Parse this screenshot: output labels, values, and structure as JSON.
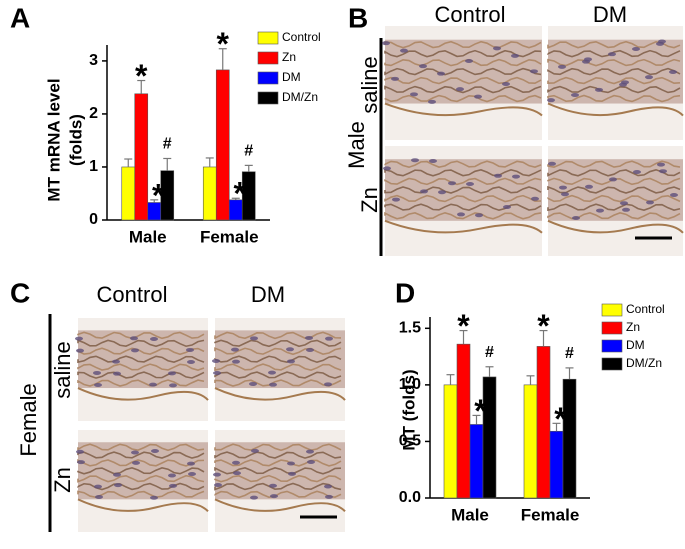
{
  "chart_data": [
    {
      "type": "bar",
      "panel": "A",
      "ylabel": [
        "MT mRNA level",
        "(folds)"
      ],
      "categories": [
        "Male",
        "Female"
      ],
      "ylim": [
        0,
        3.3
      ],
      "yticks": [
        0,
        1,
        2,
        3
      ],
      "series": [
        {
          "name": "Control",
          "color": "#ffff00",
          "values": [
            1.0,
            1.0
          ],
          "errors": [
            0.15,
            0.17
          ]
        },
        {
          "name": "Zn",
          "color": "#ff0000",
          "values": [
            2.38,
            2.83
          ],
          "errors": [
            0.25,
            0.4
          ]
        },
        {
          "name": "DM",
          "color": "#0000ff",
          "values": [
            0.33,
            0.38
          ],
          "errors": [
            0.05,
            0.03
          ]
        },
        {
          "name": "DM/Zn",
          "color": "#000000",
          "values": [
            0.93,
            0.91
          ],
          "errors": [
            0.23,
            0.12
          ]
        }
      ],
      "annotations": [
        {
          "text": "*",
          "series": 1,
          "category": 0
        },
        {
          "text": "*",
          "series": 2,
          "category": 0
        },
        {
          "text": "#",
          "series": 3,
          "category": 0
        },
        {
          "text": "*",
          "series": 1,
          "category": 1
        },
        {
          "text": "*",
          "series": 2,
          "category": 1
        },
        {
          "text": "#",
          "series": 3,
          "category": 1
        }
      ]
    },
    {
      "type": "bar",
      "panel": "D",
      "ylabel": "MT (folds)",
      "categories": [
        "Male",
        "Female"
      ],
      "ylim": [
        0,
        1.6
      ],
      "yticks": [
        {
          "value": 0,
          "label": "0.0"
        },
        {
          "value": 0.5,
          "label": "0.5"
        },
        {
          "value": 1,
          "label": "1.0"
        },
        {
          "value": 1.5,
          "label": "1.5"
        }
      ],
      "series": [
        {
          "name": "Control",
          "color": "#ffff00",
          "values": [
            1.0,
            1.0
          ],
          "errors": [
            0.09,
            0.08
          ]
        },
        {
          "name": "Zn",
          "color": "#ff0000",
          "values": [
            1.36,
            1.34
          ],
          "errors": [
            0.12,
            0.14
          ]
        },
        {
          "name": "DM",
          "color": "#0000ff",
          "values": [
            0.65,
            0.59
          ],
          "errors": [
            0.08,
            0.07
          ]
        },
        {
          "name": "DM/Zn",
          "color": "#000000",
          "values": [
            1.07,
            1.05
          ],
          "errors": [
            0.09,
            0.1
          ]
        }
      ],
      "annotations": [
        {
          "text": "*",
          "series": 1,
          "category": 0
        },
        {
          "text": "*",
          "series": 2,
          "category": 0
        },
        {
          "text": "#",
          "series": 3,
          "category": 0
        },
        {
          "text": "*",
          "series": 1,
          "category": 1
        },
        {
          "text": "*",
          "series": 2,
          "category": 1
        },
        {
          "text": "#",
          "series": 3,
          "category": 1
        }
      ]
    }
  ],
  "panels": [
    {
      "letter": "B",
      "columns": [
        "Control",
        "DM"
      ],
      "group": "Male",
      "rows": [
        "saline",
        "Zn"
      ]
    },
    {
      "letter": "C",
      "columns": [
        "Control",
        "DM"
      ],
      "group": "Female",
      "rows": [
        "saline",
        "Zn"
      ]
    }
  ]
}
